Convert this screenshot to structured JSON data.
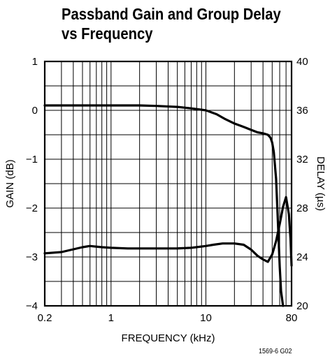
{
  "chart_data": {
    "type": "line",
    "title": [
      "Passband Gain and Group Delay",
      "vs Frequency"
    ],
    "xlabel": "FREQUENCY (kHz)",
    "ylabel_left": "GAIN (dB)",
    "ylabel_right": "DELAY (µs)",
    "x_scale": "log",
    "xlim": [
      0.2,
      80
    ],
    "ylim_left": [
      -4,
      1
    ],
    "ylim_right": [
      20,
      40
    ],
    "x_ticks": [
      "0.2",
      "1",
      "10",
      "80"
    ],
    "x_tick_values": [
      0.2,
      1,
      10,
      80
    ],
    "y_left_ticks": [
      "1",
      "0",
      "−1",
      "−2",
      "−3",
      "−4"
    ],
    "y_left_tick_values": [
      1,
      0,
      -1,
      -2,
      -3,
      -4
    ],
    "y_right_ticks": [
      "40",
      "36",
      "32",
      "28",
      "24",
      "20"
    ],
    "y_right_tick_values": [
      40,
      36,
      32,
      28,
      24,
      20
    ],
    "grid": true,
    "series": [
      {
        "axis": "left",
        "x": [
          0.2,
          0.5,
          1,
          2,
          3,
          5,
          7,
          10,
          13,
          16,
          20,
          25,
          30,
          35,
          40,
          45,
          48,
          50,
          52,
          55,
          58,
          60,
          62,
          65
        ],
        "y": [
          0.1,
          0.1,
          0.1,
          0.1,
          0.09,
          0.07,
          0.04,
          0.0,
          -0.08,
          -0.18,
          -0.27,
          -0.34,
          -0.4,
          -0.45,
          -0.47,
          -0.5,
          -0.56,
          -0.66,
          -0.85,
          -1.4,
          -2.5,
          -3.2,
          -3.7,
          -4.0
        ]
      },
      {
        "axis": "right",
        "x": [
          0.2,
          0.3,
          0.5,
          0.6,
          0.8,
          1,
          1.5,
          2,
          3,
          5,
          7,
          10,
          12,
          15,
          18,
          20,
          25,
          30,
          35,
          40,
          45,
          50,
          55,
          60,
          65,
          70,
          75,
          78,
          80
        ],
        "y": [
          24.3,
          24.4,
          24.8,
          24.9,
          24.8,
          24.75,
          24.7,
          24.7,
          24.7,
          24.7,
          24.75,
          24.9,
          25.0,
          25.1,
          25.1,
          25.1,
          25.0,
          24.6,
          24.1,
          23.8,
          23.6,
          24.2,
          25.3,
          26.7,
          28.1,
          28.9,
          27.5,
          25.5,
          23.3
        ]
      }
    ]
  },
  "figure_id": "1569-6 G02"
}
